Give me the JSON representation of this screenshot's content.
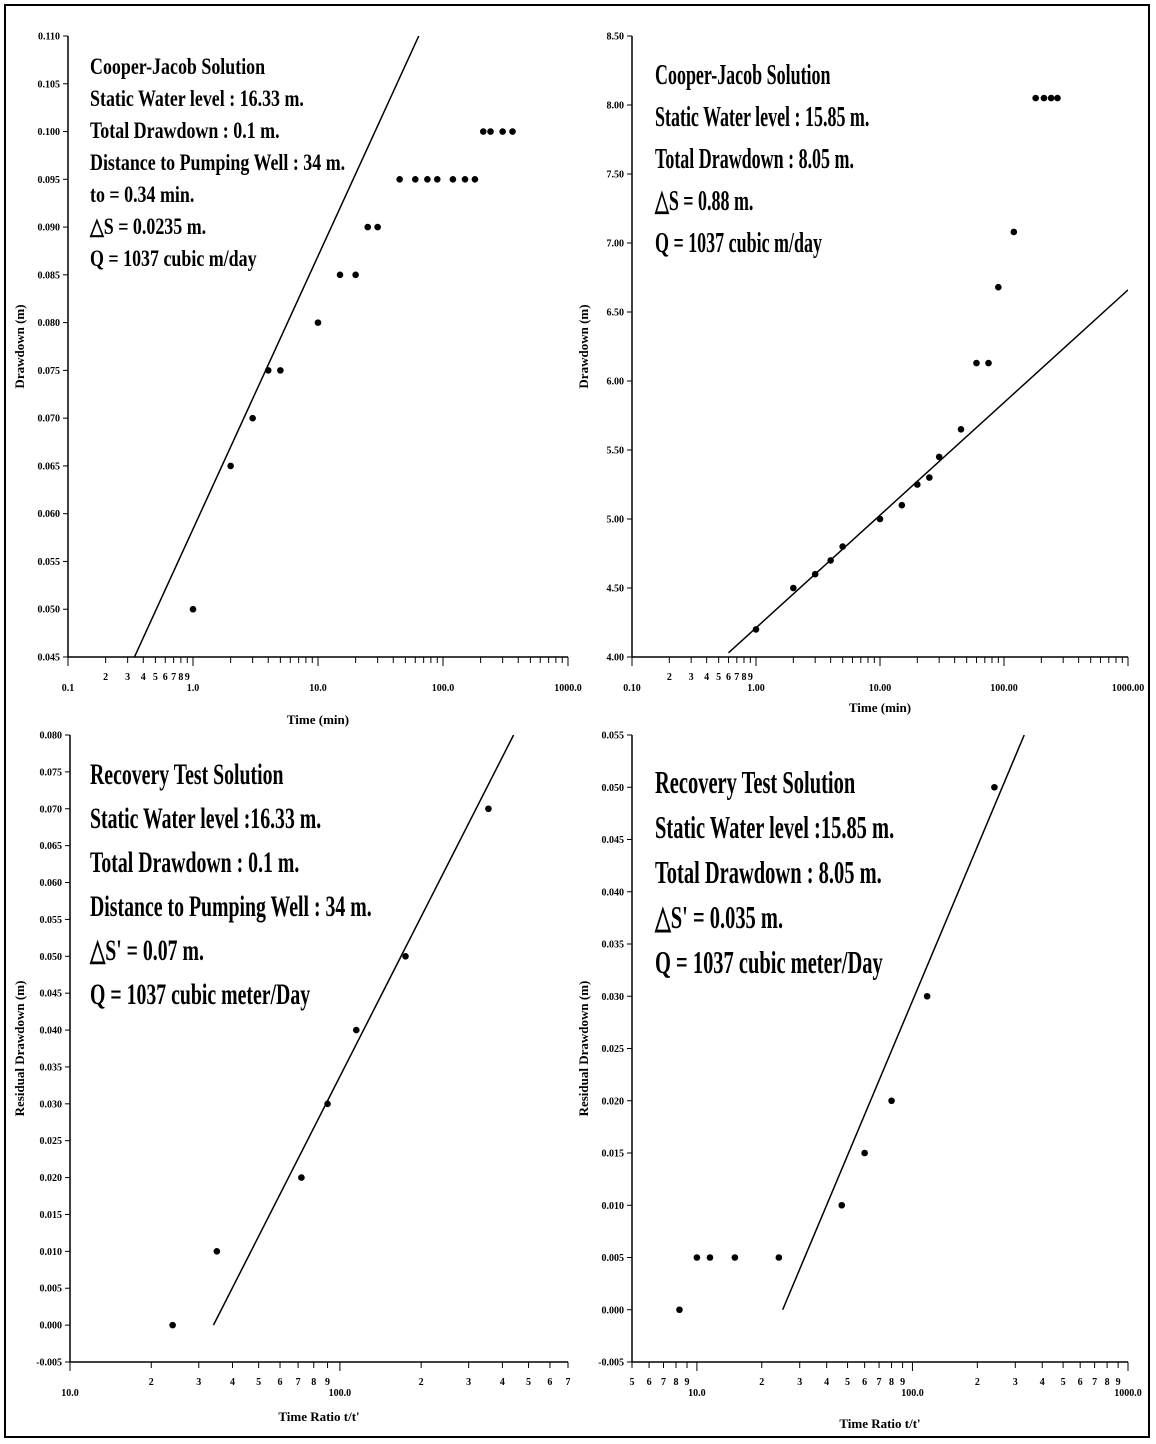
{
  "chart_data": [
    {
      "type": "scatter",
      "title": "",
      "xlabel": "Time (min)",
      "ylabel": "Drawdown (m)",
      "xscale": "log",
      "xlim": [
        0.1,
        1000
      ],
      "ylim": [
        0.045,
        0.11
      ],
      "x_major_labels": [
        "0.1",
        "1.0",
        "10.0",
        "100.0",
        "1000.0"
      ],
      "x_minor_labels": [
        "2",
        "3",
        "4",
        "5",
        "6",
        "7",
        "8",
        "9"
      ],
      "y_ticks": [
        "0.045",
        "0.050",
        "0.055",
        "0.060",
        "0.065",
        "0.070",
        "0.075",
        "0.080",
        "0.085",
        "0.090",
        "0.095",
        "0.100",
        "0.105",
        "0.110"
      ],
      "annotations": [
        "Cooper-Jacob Solution",
        "Static Water level : 16.33 m.",
        "Total Drawdown : 0.1 m.",
        "Distance to Pumping Well : 34 m.",
        "to = 0.34 min.",
        "△S = 0.0235 m.",
        "Q = 1037 cubic m/day"
      ],
      "points": [
        {
          "x": 1.0,
          "y": 0.05
        },
        {
          "x": 2.0,
          "y": 0.065
        },
        {
          "x": 3.0,
          "y": 0.07
        },
        {
          "x": 4.0,
          "y": 0.075
        },
        {
          "x": 5.0,
          "y": 0.075
        },
        {
          "x": 10.0,
          "y": 0.08
        },
        {
          "x": 15.0,
          "y": 0.085
        },
        {
          "x": 20.0,
          "y": 0.085
        },
        {
          "x": 25.0,
          "y": 0.09
        },
        {
          "x": 30.0,
          "y": 0.09
        },
        {
          "x": 45.0,
          "y": 0.095
        },
        {
          "x": 60.0,
          "y": 0.095
        },
        {
          "x": 75.0,
          "y": 0.095
        },
        {
          "x": 90.0,
          "y": 0.095
        },
        {
          "x": 120.0,
          "y": 0.095
        },
        {
          "x": 150.0,
          "y": 0.095
        },
        {
          "x": 180.0,
          "y": 0.095
        },
        {
          "x": 210.0,
          "y": 0.1
        },
        {
          "x": 240.0,
          "y": 0.1
        },
        {
          "x": 300.0,
          "y": 0.1
        },
        {
          "x": 360.0,
          "y": 0.1
        }
      ],
      "fit_line": [
        {
          "x": 0.34,
          "y": 0.045
        },
        {
          "x": 64.0,
          "y": 0.11
        }
      ]
    },
    {
      "type": "scatter",
      "title": "",
      "xlabel": "Time (min)",
      "ylabel": "Drawdown (m)",
      "xscale": "log",
      "xlim": [
        0.1,
        1000
      ],
      "ylim": [
        4.0,
        8.5
      ],
      "x_major_labels": [
        "0.10",
        "1.00",
        "10.00",
        "100.00",
        "1000.00"
      ],
      "x_minor_labels": [
        "2",
        "3",
        "4",
        "5",
        "6",
        "7",
        "8",
        "9"
      ],
      "y_ticks": [
        "4.00",
        "4.50",
        "5.00",
        "5.50",
        "6.00",
        "6.50",
        "7.00",
        "7.50",
        "8.00",
        "8.50"
      ],
      "annotations": [
        "Cooper-Jacob Solution",
        "Static Water level : 15.85 m.",
        "Total Drawdown : 8.05 m.",
        "△S = 0.88 m.",
        "Q = 1037 cubic m/day"
      ],
      "points": [
        {
          "x": 1.0,
          "y": 4.2
        },
        {
          "x": 2.0,
          "y": 4.5
        },
        {
          "x": 3.0,
          "y": 4.6
        },
        {
          "x": 4.0,
          "y": 4.7
        },
        {
          "x": 5.0,
          "y": 4.8
        },
        {
          "x": 10.0,
          "y": 5.0
        },
        {
          "x": 15.0,
          "y": 5.1
        },
        {
          "x": 20.0,
          "y": 5.25
        },
        {
          "x": 25.0,
          "y": 5.3
        },
        {
          "x": 30.0,
          "y": 5.45
        },
        {
          "x": 45.0,
          "y": 5.65
        },
        {
          "x": 60.0,
          "y": 6.13
        },
        {
          "x": 75.0,
          "y": 6.13
        },
        {
          "x": 90.0,
          "y": 6.68
        },
        {
          "x": 120.0,
          "y": 7.08
        },
        {
          "x": 180.0,
          "y": 8.05
        },
        {
          "x": 210.0,
          "y": 8.05
        },
        {
          "x": 240.0,
          "y": 8.05
        },
        {
          "x": 270.0,
          "y": 8.05
        }
      ],
      "fit_line": [
        {
          "x": 0.6,
          "y": 4.03
        },
        {
          "x": 1000.0,
          "y": 6.66
        }
      ]
    },
    {
      "type": "scatter",
      "title": "",
      "xlabel": "Time Ratio t/t'",
      "ylabel": "Residual Drawdown (m)",
      "xscale": "log",
      "xlim": [
        10,
        700
      ],
      "ylim": [
        -0.005,
        0.08
      ],
      "x_major_labels": [
        "10.0",
        "100.0"
      ],
      "x_minor_labels": [
        "2",
        "3",
        "4",
        "5",
        "6",
        "7",
        "8",
        "9",
        "2",
        "3",
        "4",
        "5",
        "6",
        "7"
      ],
      "y_ticks": [
        "-0.005",
        "0.000",
        "0.005",
        "0.010",
        "0.015",
        "0.020",
        "0.025",
        "0.030",
        "0.035",
        "0.040",
        "0.045",
        "0.050",
        "0.055",
        "0.060",
        "0.065",
        "0.070",
        "0.075",
        "0.080"
      ],
      "annotations": [
        "Recovery Test Solution",
        "Static Water level :16.33 m.",
        "Total Drawdown : 0.1 m.",
        "Distance to Pumping Well : 34 m.",
        "△S' = 0.07 m.",
        "Q = 1037 cubic meter/Day"
      ],
      "points": [
        {
          "x": 24.0,
          "y": 0.0
        },
        {
          "x": 35.0,
          "y": 0.01
        },
        {
          "x": 72.0,
          "y": 0.02
        },
        {
          "x": 90.0,
          "y": 0.03
        },
        {
          "x": 115.0,
          "y": 0.04
        },
        {
          "x": 175.0,
          "y": 0.05
        },
        {
          "x": 355.0,
          "y": 0.07
        }
      ],
      "fit_line": [
        {
          "x": 34.0,
          "y": 0.0
        },
        {
          "x": 440.0,
          "y": 0.08
        }
      ]
    },
    {
      "type": "scatter",
      "title": "",
      "xlabel": "Time Ratio t/t'",
      "ylabel": "Residual Drawdown (m)",
      "xscale": "log",
      "xlim": [
        5,
        1000
      ],
      "ylim": [
        -0.005,
        0.055
      ],
      "x_major_labels": [
        "10.0",
        "100.0",
        "1000.0"
      ],
      "x_minor_labels": [
        "5",
        "6",
        "7",
        "8",
        "9",
        "2",
        "3",
        "4",
        "5",
        "6",
        "7",
        "8",
        "9",
        "2",
        "3",
        "4",
        "5",
        "6",
        "7",
        "8",
        "9"
      ],
      "y_ticks": [
        "-0.005",
        "0.000",
        "0.005",
        "0.010",
        "0.015",
        "0.020",
        "0.025",
        "0.030",
        "0.035",
        "0.040",
        "0.045",
        "0.050",
        "0.055"
      ],
      "annotations": [
        "Recovery Test Solution",
        "Static Water level :15.85 m.",
        "Total Drawdown : 8.05 m.",
        "△S' = 0.035 m.",
        "Q = 1037 cubic meter/Day"
      ],
      "points": [
        {
          "x": 8.3,
          "y": 0.0
        },
        {
          "x": 10.0,
          "y": 0.005
        },
        {
          "x": 11.5,
          "y": 0.005
        },
        {
          "x": 15.0,
          "y": 0.005
        },
        {
          "x": 24.0,
          "y": 0.005
        },
        {
          "x": 47.0,
          "y": 0.01
        },
        {
          "x": 60.0,
          "y": 0.015
        },
        {
          "x": 80.0,
          "y": 0.02
        },
        {
          "x": 117.0,
          "y": 0.03
        },
        {
          "x": 240.0,
          "y": 0.05
        }
      ],
      "fit_line": [
        {
          "x": 25.0,
          "y": 0.0
        },
        {
          "x": 330.0,
          "y": 0.055
        }
      ]
    }
  ]
}
